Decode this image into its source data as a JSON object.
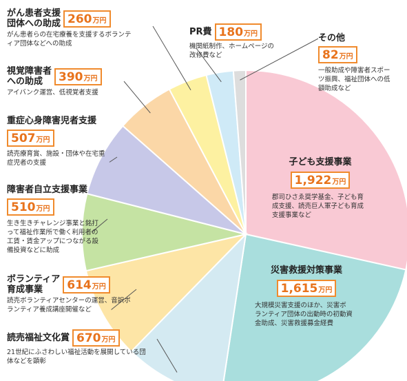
{
  "chart_data": {
    "type": "pie",
    "unit": "万円",
    "slices": [
      {
        "label": "子ども支援事業",
        "value": 1922,
        "value_text": "1,922",
        "color": "#f9c9d4",
        "desc": "郡司ひさゑ奨学基金、子ども育成支援、読売巨人軍子ども育成支援事業など"
      },
      {
        "label": "災害救援対策事業",
        "value": 1615,
        "value_text": "1,615",
        "color": "#a9dedd",
        "desc": "大規模災害支援のほか、災害ボランティア団体の出動時の初動資金助成、災害救援募金経費"
      },
      {
        "label": "読売福祉文化賞",
        "value": 670,
        "value_text": "670",
        "color": "#d4eaf2",
        "desc": "21世紀にふさわしい福祉活動を展開している団体などを顕彰"
      },
      {
        "label": "ボランティア育成事業",
        "value": 614,
        "value_text": "614",
        "color": "#fde5a6",
        "desc": "読売ボランティアセンターの運営、音訳ボランティア養成講座開催など"
      },
      {
        "label": "障害者自立支援事業",
        "value": 510,
        "value_text": "510",
        "color": "#c5e3a3",
        "desc": "生き生きチャレンジ事業と銘打って福祉作業所で働く利用者の工賃・賃金アップにつながる設備投資などに助成"
      },
      {
        "label": "重症心身障害児者支援",
        "value": 507,
        "value_text": "507",
        "color": "#c7c8e8",
        "desc": "読売療育賞、施設・団体や在宅重症児者の支援"
      },
      {
        "label": "視覚障害者への助成",
        "value": 390,
        "value_text": "390",
        "color": "#fbd7a7",
        "desc": "アイバンク運営、低視覚者支援"
      },
      {
        "label": "がん患者支援団体への助成",
        "value": 260,
        "value_text": "260",
        "color": "#fdf1a1",
        "desc": "がん患者らの在宅療養を支援するボランティア団体などへの助成"
      },
      {
        "label": "PR費",
        "value": 180,
        "value_text": "180",
        "color": "#cfeaf7",
        "desc": "機関紙制作、ホームページの改修費など"
      },
      {
        "label": "その他",
        "value": 82,
        "value_text": "82",
        "color": "#dddddd",
        "desc": "一般助成や障害者スポーツ振興、福祉団体への低額助成など"
      }
    ]
  },
  "labels": {
    "kodomo": {
      "title": "子ども支援事業"
    },
    "saigai": {
      "title": "災害救援対策事業"
    },
    "fukushi": {
      "title": "読売福祉文化賞"
    },
    "volunteer": {
      "title": "ボランティア\n育成事業"
    },
    "jiritsu": {
      "title": "障害者自立支援事業"
    },
    "jushin": {
      "title": "重症心身障害児者支援"
    },
    "shikaku": {
      "title": "視覚障害者\nへの助成"
    },
    "gan": {
      "title": "がん患者支援\n団体への助成"
    },
    "pr": {
      "title": "PR費"
    },
    "sonota": {
      "title": "その他"
    }
  }
}
